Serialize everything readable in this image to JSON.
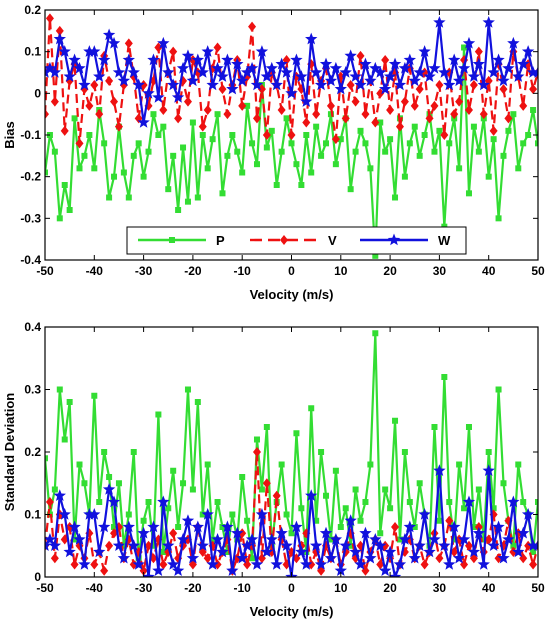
{
  "chart_data": [
    {
      "type": "line",
      "title": "",
      "xlabel": "Velocity (m/s)",
      "ylabel": "Bias",
      "xlim": [
        -50,
        50
      ],
      "ylim": [
        -0.4,
        0.2
      ],
      "xticks": [
        "-50",
        "-40",
        "-30",
        "-20",
        "-10",
        "0",
        "10",
        "20",
        "30",
        "40",
        "50"
      ],
      "yticks": [
        "0.2",
        "0.1",
        "0",
        "-0.1",
        "-0.2",
        "-0.3",
        "-0.4"
      ],
      "legend": {
        "placement": "bottom-center",
        "orientation": "horizontal"
      },
      "x": [
        -50,
        -49,
        -48,
        -47,
        -46,
        -45,
        -44,
        -43,
        -42,
        -41,
        -40,
        -39,
        -38,
        -37,
        -36,
        -35,
        -34,
        -33,
        -32,
        -31,
        -30,
        -29,
        -28,
        -27,
        -26,
        -25,
        -24,
        -23,
        -22,
        -21,
        -20,
        -19,
        -18,
        -17,
        -16,
        -15,
        -14,
        -13,
        -12,
        -11,
        -10,
        -9,
        -8,
        -7,
        -6,
        -5,
        -4,
        -3,
        -2,
        -1,
        0,
        1,
        2,
        3,
        4,
        5,
        6,
        7,
        8,
        9,
        10,
        11,
        12,
        13,
        14,
        15,
        16,
        17,
        18,
        19,
        20,
        21,
        22,
        23,
        24,
        25,
        26,
        27,
        28,
        29,
        30,
        31,
        32,
        33,
        34,
        35,
        36,
        37,
        38,
        39,
        40,
        41,
        42,
        43,
        44,
        45,
        46,
        47,
        48,
        49,
        50
      ],
      "series": [
        {
          "name": "P",
          "color": "#33dd33",
          "marker": "square",
          "dash": "solid",
          "values": [
            -0.19,
            -0.1,
            -0.14,
            -0.3,
            -0.22,
            -0.28,
            -0.06,
            -0.18,
            -0.15,
            -0.1,
            -0.18,
            -0.04,
            -0.12,
            -0.25,
            -0.2,
            -0.08,
            -0.19,
            -0.25,
            -0.15,
            -0.12,
            -0.2,
            -0.14,
            -0.05,
            -0.1,
            -0.08,
            -0.23,
            -0.15,
            -0.28,
            -0.13,
            -0.26,
            -0.07,
            -0.25,
            -0.1,
            -0.18,
            -0.11,
            -0.05,
            -0.24,
            -0.15,
            -0.1,
            -0.14,
            -0.19,
            -0.03,
            -0.12,
            -0.17,
            0.02,
            -0.13,
            -0.09,
            -0.22,
            -0.14,
            -0.06,
            -0.12,
            -0.17,
            -0.22,
            -0.1,
            -0.19,
            -0.08,
            -0.15,
            -0.12,
            -0.05,
            -0.17,
            -0.11,
            -0.06,
            -0.23,
            -0.14,
            -0.09,
            -0.12,
            -0.18,
            -0.39,
            -0.07,
            -0.14,
            -0.11,
            -0.25,
            -0.06,
            -0.2,
            -0.12,
            -0.08,
            -0.15,
            -0.1,
            -0.05,
            -0.14,
            -0.09,
            -0.32,
            -0.12,
            -0.06,
            -0.18,
            0.11,
            -0.24,
            -0.08,
            -0.14,
            -0.06,
            -0.2,
            -0.11,
            -0.3,
            -0.15,
            -0.09,
            -0.05,
            -0.18,
            -0.12,
            -0.1,
            -0.04,
            -0.12
          ]
        },
        {
          "name": "V",
          "color": "#ee1111",
          "marker": "diamond",
          "dash": "dashed",
          "values": [
            -0.05,
            0.18,
            -0.02,
            0.15,
            -0.09,
            0.03,
            0.07,
            -0.12,
            0.01,
            -0.03,
            0.02,
            -0.05,
            0.09,
            0.03,
            -0.02,
            -0.08,
            0.02,
            0.12,
            0.04,
            -0.06,
            0.02,
            -0.03,
            0.03,
            0.11,
            -0.04,
            0.05,
            0.1,
            -0.06,
            0.03,
            -0.02,
            0.08,
            0.05,
            -0.08,
            -0.04,
            0.06,
            0.11,
            0.01,
            -0.05,
            0.02,
            0.08,
            -0.03,
            0.04,
            0.16,
            -0.06,
            0.01,
            -0.1,
            0.05,
            0.02,
            -0.04,
            0.08,
            -0.1,
            0.04,
            0.01,
            -0.07,
            0.07,
            -0.05,
            0.03,
            0.06,
            -0.03,
            -0.11,
            0.04,
            -0.06,
            0.02,
            -0.02,
            0.09,
            -0.05,
            0.03,
            -0.07,
            0.0,
            0.08,
            -0.04,
            0.05,
            -0.08,
            -0.02,
            0.06,
            -0.03,
            0.01,
            0.05,
            -0.06,
            -0.03,
            0.02,
            -0.1,
            0.05,
            -0.05,
            -0.02,
            0.08,
            -0.04,
            0.02,
            0.1,
            -0.05,
            0.03,
            -0.09,
            0.07,
            0.01,
            -0.06,
            0.1,
            0.04,
            -0.03,
            0.07,
            0.01,
            0.05
          ]
        },
        {
          "name": "W",
          "color": "#1111dd",
          "marker": "star",
          "dash": "solid",
          "values": [
            0.05,
            0.06,
            0.05,
            0.13,
            0.1,
            0.04,
            0.08,
            0.06,
            0.02,
            0.1,
            0.1,
            0.04,
            0.08,
            0.14,
            0.12,
            0.05,
            0.03,
            0.08,
            0.05,
            0.02,
            -0.07,
            0.0,
            0.08,
            -0.01,
            0.12,
            0.05,
            0.02,
            -0.01,
            0.06,
            0.09,
            0.03,
            0.08,
            0.05,
            0.1,
            0.02,
            0.06,
            0.04,
            0.08,
            0.01,
            0.07,
            0.03,
            0.05,
            0.06,
            0.02,
            0.1,
            0.04,
            0.06,
            0.02,
            0.07,
            0.05,
            0.0,
            0.08,
            0.04,
            -0.02,
            0.13,
            0.05,
            0.02,
            0.07,
            0.03,
            0.06,
            0.01,
            0.05,
            0.09,
            0.04,
            0.02,
            0.07,
            0.03,
            0.06,
            0.05,
            0.01,
            0.04,
            0.07,
            0.02,
            0.06,
            0.08,
            0.03,
            0.05,
            0.1,
            0.04,
            0.06,
            0.17,
            0.05,
            0.02,
            0.08,
            0.03,
            0.06,
            0.12,
            0.04,
            0.07,
            0.02,
            0.17,
            0.05,
            0.08,
            0.03,
            0.06,
            0.12,
            0.04,
            0.07,
            0.1,
            0.05,
            0.05
          ]
        }
      ]
    },
    {
      "type": "line",
      "title": "",
      "xlabel": "Velocity (m/s)",
      "ylabel": "Standard Deviation",
      "xlim": [
        -50,
        50
      ],
      "ylim": [
        0,
        0.4
      ],
      "xticks": [
        "-50",
        "-40",
        "-30",
        "-20",
        "-10",
        "0",
        "10",
        "20",
        "30",
        "40",
        "50"
      ],
      "yticks": [
        "0.4",
        "0.3",
        "0.2",
        "0.1",
        "0"
      ],
      "x": [
        -50,
        -49,
        -48,
        -47,
        -46,
        -45,
        -44,
        -43,
        -42,
        -41,
        -40,
        -39,
        -38,
        -37,
        -36,
        -35,
        -34,
        -33,
        -32,
        -31,
        -30,
        -29,
        -28,
        -27,
        -26,
        -25,
        -24,
        -23,
        -22,
        -21,
        -20,
        -19,
        -18,
        -17,
        -16,
        -15,
        -14,
        -13,
        -12,
        -11,
        -10,
        -9,
        -8,
        -7,
        -6,
        -5,
        -4,
        -3,
        -2,
        -1,
        0,
        1,
        2,
        3,
        4,
        5,
        6,
        7,
        8,
        9,
        10,
        11,
        12,
        13,
        14,
        15,
        16,
        17,
        18,
        19,
        20,
        21,
        22,
        23,
        24,
        25,
        26,
        27,
        28,
        29,
        30,
        31,
        32,
        33,
        34,
        35,
        36,
        37,
        38,
        39,
        40,
        41,
        42,
        43,
        44,
        45,
        46,
        47,
        48,
        49,
        50
      ],
      "series": [
        {
          "name": "P",
          "color": "#33dd33",
          "marker": "square",
          "dash": "solid",
          "values": [
            0.19,
            0.1,
            0.14,
            0.3,
            0.22,
            0.28,
            0.06,
            0.18,
            0.15,
            0.1,
            0.29,
            0.12,
            0.2,
            0.16,
            0.08,
            0.15,
            0.05,
            0.1,
            0.2,
            0.03,
            0.09,
            0.12,
            0.05,
            0.26,
            0.04,
            0.11,
            0.17,
            0.08,
            0.15,
            0.3,
            0.14,
            0.28,
            0.1,
            0.18,
            0.06,
            0.12,
            0.08,
            0.04,
            0.1,
            0.06,
            0.16,
            0.09,
            0.03,
            0.22,
            0.14,
            0.24,
            0.05,
            0.12,
            0.18,
            0.1,
            0.07,
            0.23,
            0.11,
            0.04,
            0.27,
            0.09,
            0.2,
            0.13,
            0.06,
            0.17,
            0.08,
            0.11,
            0.05,
            0.14,
            0.09,
            0.12,
            0.18,
            0.39,
            0.07,
            0.14,
            0.11,
            0.25,
            0.06,
            0.2,
            0.12,
            0.08,
            0.15,
            0.1,
            0.05,
            0.24,
            0.09,
            0.32,
            0.12,
            0.06,
            0.18,
            0.11,
            0.24,
            0.08,
            0.14,
            0.06,
            0.2,
            0.11,
            0.3,
            0.15,
            0.09,
            0.05,
            0.18,
            0.12,
            0.1,
            0.04,
            0.12
          ]
        },
        {
          "name": "V",
          "color": "#ee1111",
          "marker": "diamond",
          "dash": "dashed",
          "values": [
            0.05,
            0.12,
            0.03,
            0.1,
            0.06,
            0.08,
            0.02,
            0.05,
            0.03,
            0.07,
            0.02,
            0.04,
            0.01,
            0.05,
            0.07,
            0.08,
            0.03,
            0.06,
            0.02,
            0.04,
            0.01,
            0.05,
            0.03,
            0.06,
            0.02,
            0.04,
            0.07,
            0.03,
            0.05,
            0.06,
            0.02,
            0.08,
            0.04,
            0.03,
            0.05,
            0.02,
            0.04,
            0.06,
            0.01,
            0.03,
            0.07,
            0.02,
            0.05,
            0.2,
            0.03,
            0.15,
            0.04,
            0.13,
            0.06,
            0.02,
            0.04,
            0.03,
            0.05,
            0.07,
            0.02,
            0.04,
            0.01,
            0.05,
            0.03,
            0.06,
            0.02,
            0.04,
            0.07,
            0.03,
            0.05,
            0.01,
            0.04,
            0.06,
            0.02,
            0.05,
            0.03,
            0.08,
            0.02,
            0.04,
            0.06,
            0.03,
            0.05,
            0.02,
            0.04,
            0.07,
            0.03,
            0.05,
            0.09,
            0.04,
            0.06,
            0.02,
            0.05,
            0.03,
            0.08,
            0.04,
            0.06,
            0.1,
            0.03,
            0.05,
            0.09,
            0.04,
            0.07,
            0.03,
            0.05,
            0.02,
            0.05
          ]
        },
        {
          "name": "W",
          "color": "#1111dd",
          "marker": "star",
          "dash": "solid",
          "values": [
            0.05,
            0.06,
            0.05,
            0.13,
            0.1,
            0.04,
            0.08,
            0.06,
            0.02,
            0.1,
            0.1,
            0.04,
            0.08,
            0.14,
            0.12,
            0.05,
            0.03,
            0.08,
            0.05,
            0.02,
            0.07,
            0.0,
            0.08,
            0.01,
            0.12,
            0.05,
            0.02,
            0.01,
            0.06,
            0.09,
            0.03,
            0.08,
            0.05,
            0.1,
            0.02,
            0.06,
            0.04,
            0.08,
            0.01,
            0.07,
            0.03,
            0.05,
            0.06,
            0.02,
            0.1,
            0.04,
            0.06,
            0.02,
            0.07,
            0.05,
            0.0,
            0.08,
            0.04,
            0.02,
            0.13,
            0.05,
            0.02,
            0.07,
            0.03,
            0.06,
            0.01,
            0.05,
            0.09,
            0.04,
            0.02,
            0.07,
            0.03,
            0.06,
            0.05,
            0.01,
            0.04,
            0.0,
            0.02,
            0.06,
            0.08,
            0.03,
            0.05,
            0.1,
            0.04,
            0.06,
            0.17,
            0.05,
            0.02,
            0.08,
            0.03,
            0.06,
            0.12,
            0.04,
            0.07,
            0.02,
            0.17,
            0.05,
            0.08,
            0.03,
            0.06,
            0.12,
            0.04,
            0.07,
            0.1,
            0.05,
            0.05
          ]
        }
      ]
    }
  ]
}
